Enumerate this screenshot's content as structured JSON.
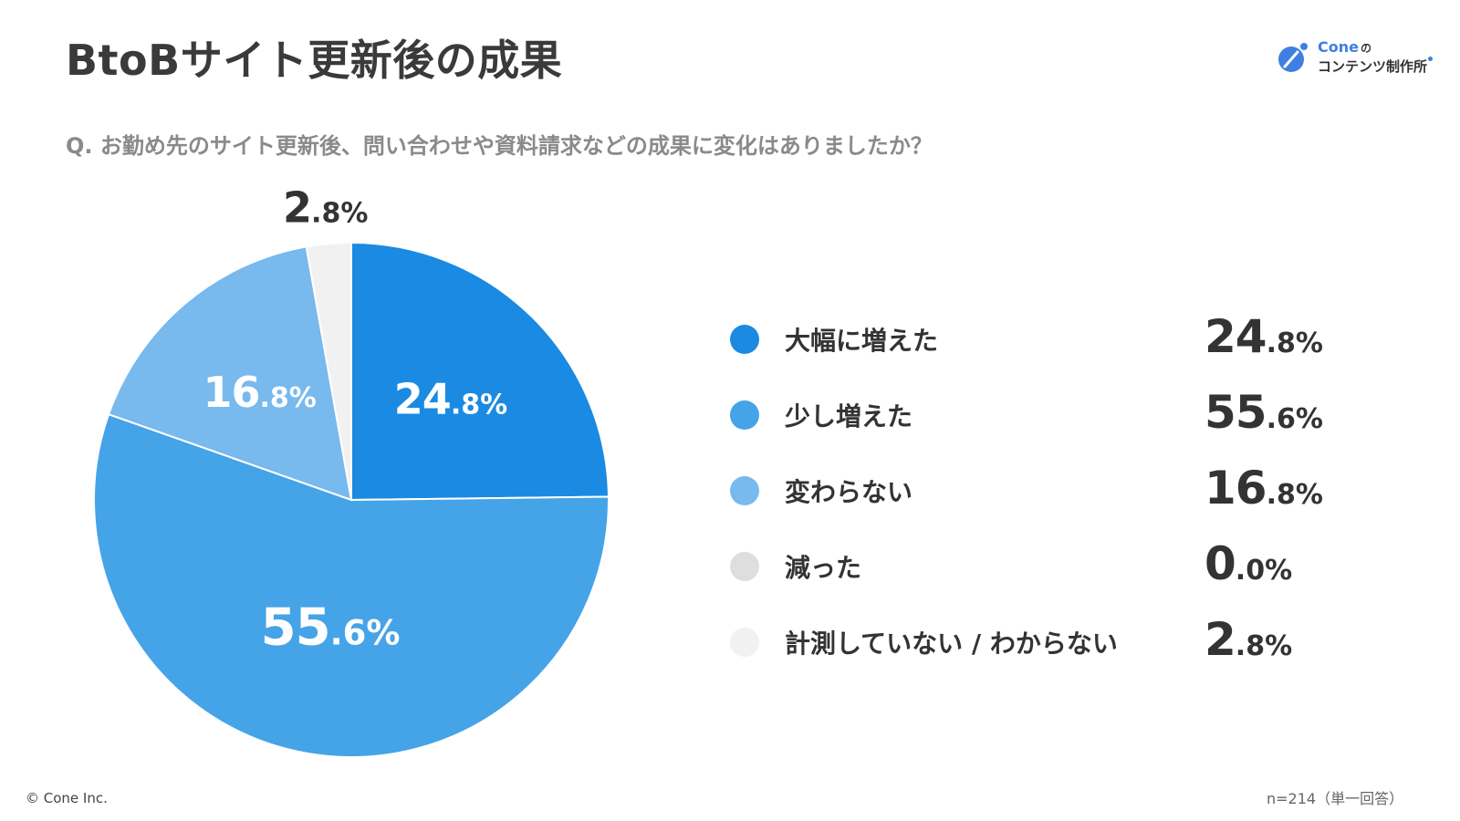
{
  "header": {
    "title": "BtoBサイト更新後の成果",
    "question": "Q. お勤め先のサイト更新後、問い合わせや資料請求などの成果に変化はありましたか？"
  },
  "logo": {
    "name": "Cone",
    "name_suffix": "の",
    "subtitle": "コンテンツ制作所",
    "accent_color": "#3f7fe0"
  },
  "chart_data": {
    "type": "pie",
    "title": "",
    "unit": "%",
    "start_angle": "12 o'clock",
    "direction": "clockwise",
    "series": [
      {
        "name": "大幅に増えた",
        "value": 24.8,
        "label_int": "24",
        "label_frac": ".8%",
        "color": "#1a8ae2",
        "label_color": "#ffffff",
        "label_inside": true
      },
      {
        "name": "少し増えた",
        "value": 55.6,
        "label_int": "55",
        "label_frac": ".6%",
        "color": "#45a3e8",
        "label_color": "#ffffff",
        "label_inside": true
      },
      {
        "name": "変わらない",
        "value": 16.8,
        "label_int": "16",
        "label_frac": ".8%",
        "color": "#78b9ee",
        "label_color": "#ffffff",
        "label_inside": true
      },
      {
        "name": "減った",
        "value": 0.0,
        "label_int": "0",
        "label_frac": ".0%",
        "color": "#dedede",
        "label_color": "#333333",
        "label_inside": false
      },
      {
        "name": "計測していない / わからない",
        "value": 2.8,
        "label_int": "2",
        "label_frac": ".8%",
        "color": "#f1f1f1",
        "label_color": "#333333",
        "label_inside": false
      }
    ],
    "legend_position": "right"
  },
  "footer": {
    "copyright": "© Cone Inc.",
    "sample_note": "n=214（単一回答）"
  }
}
